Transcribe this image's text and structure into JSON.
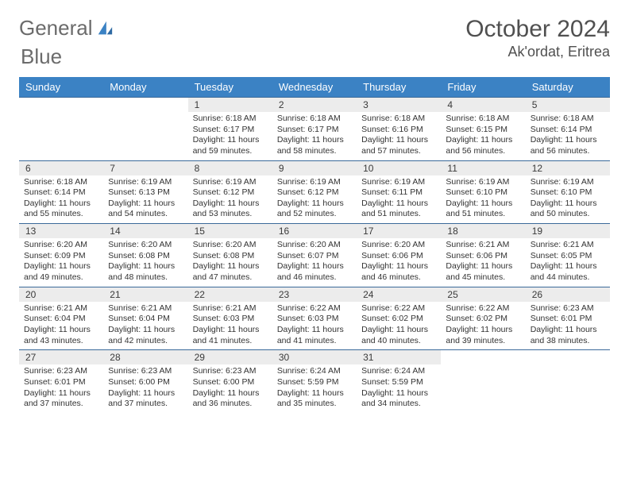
{
  "logo": {
    "text1": "General",
    "text2": "Blue"
  },
  "title": "October 2024",
  "location": "Ak'ordat, Eritrea",
  "weekdays": [
    "Sunday",
    "Monday",
    "Tuesday",
    "Wednesday",
    "Thursday",
    "Friday",
    "Saturday"
  ],
  "colors": {
    "header_bg": "#3b82c4",
    "header_fg": "#ffffff",
    "daynum_bg": "#ececec",
    "rule": "#3b6a9a",
    "text": "#333333"
  },
  "weeks": [
    [
      null,
      null,
      {
        "n": "1",
        "sr": "6:18 AM",
        "ss": "6:17 PM",
        "dl": "11 hours and 59 minutes."
      },
      {
        "n": "2",
        "sr": "6:18 AM",
        "ss": "6:17 PM",
        "dl": "11 hours and 58 minutes."
      },
      {
        "n": "3",
        "sr": "6:18 AM",
        "ss": "6:16 PM",
        "dl": "11 hours and 57 minutes."
      },
      {
        "n": "4",
        "sr": "6:18 AM",
        "ss": "6:15 PM",
        "dl": "11 hours and 56 minutes."
      },
      {
        "n": "5",
        "sr": "6:18 AM",
        "ss": "6:14 PM",
        "dl": "11 hours and 56 minutes."
      }
    ],
    [
      {
        "n": "6",
        "sr": "6:18 AM",
        "ss": "6:14 PM",
        "dl": "11 hours and 55 minutes."
      },
      {
        "n": "7",
        "sr": "6:19 AM",
        "ss": "6:13 PM",
        "dl": "11 hours and 54 minutes."
      },
      {
        "n": "8",
        "sr": "6:19 AM",
        "ss": "6:12 PM",
        "dl": "11 hours and 53 minutes."
      },
      {
        "n": "9",
        "sr": "6:19 AM",
        "ss": "6:12 PM",
        "dl": "11 hours and 52 minutes."
      },
      {
        "n": "10",
        "sr": "6:19 AM",
        "ss": "6:11 PM",
        "dl": "11 hours and 51 minutes."
      },
      {
        "n": "11",
        "sr": "6:19 AM",
        "ss": "6:10 PM",
        "dl": "11 hours and 51 minutes."
      },
      {
        "n": "12",
        "sr": "6:19 AM",
        "ss": "6:10 PM",
        "dl": "11 hours and 50 minutes."
      }
    ],
    [
      {
        "n": "13",
        "sr": "6:20 AM",
        "ss": "6:09 PM",
        "dl": "11 hours and 49 minutes."
      },
      {
        "n": "14",
        "sr": "6:20 AM",
        "ss": "6:08 PM",
        "dl": "11 hours and 48 minutes."
      },
      {
        "n": "15",
        "sr": "6:20 AM",
        "ss": "6:08 PM",
        "dl": "11 hours and 47 minutes."
      },
      {
        "n": "16",
        "sr": "6:20 AM",
        "ss": "6:07 PM",
        "dl": "11 hours and 46 minutes."
      },
      {
        "n": "17",
        "sr": "6:20 AM",
        "ss": "6:06 PM",
        "dl": "11 hours and 46 minutes."
      },
      {
        "n": "18",
        "sr": "6:21 AM",
        "ss": "6:06 PM",
        "dl": "11 hours and 45 minutes."
      },
      {
        "n": "19",
        "sr": "6:21 AM",
        "ss": "6:05 PM",
        "dl": "11 hours and 44 minutes."
      }
    ],
    [
      {
        "n": "20",
        "sr": "6:21 AM",
        "ss": "6:04 PM",
        "dl": "11 hours and 43 minutes."
      },
      {
        "n": "21",
        "sr": "6:21 AM",
        "ss": "6:04 PM",
        "dl": "11 hours and 42 minutes."
      },
      {
        "n": "22",
        "sr": "6:21 AM",
        "ss": "6:03 PM",
        "dl": "11 hours and 41 minutes."
      },
      {
        "n": "23",
        "sr": "6:22 AM",
        "ss": "6:03 PM",
        "dl": "11 hours and 41 minutes."
      },
      {
        "n": "24",
        "sr": "6:22 AM",
        "ss": "6:02 PM",
        "dl": "11 hours and 40 minutes."
      },
      {
        "n": "25",
        "sr": "6:22 AM",
        "ss": "6:02 PM",
        "dl": "11 hours and 39 minutes."
      },
      {
        "n": "26",
        "sr": "6:23 AM",
        "ss": "6:01 PM",
        "dl": "11 hours and 38 minutes."
      }
    ],
    [
      {
        "n": "27",
        "sr": "6:23 AM",
        "ss": "6:01 PM",
        "dl": "11 hours and 37 minutes."
      },
      {
        "n": "28",
        "sr": "6:23 AM",
        "ss": "6:00 PM",
        "dl": "11 hours and 37 minutes."
      },
      {
        "n": "29",
        "sr": "6:23 AM",
        "ss": "6:00 PM",
        "dl": "11 hours and 36 minutes."
      },
      {
        "n": "30",
        "sr": "6:24 AM",
        "ss": "5:59 PM",
        "dl": "11 hours and 35 minutes."
      },
      {
        "n": "31",
        "sr": "6:24 AM",
        "ss": "5:59 PM",
        "dl": "11 hours and 34 minutes."
      },
      null,
      null
    ]
  ],
  "labels": {
    "sunrise": "Sunrise:",
    "sunset": "Sunset:",
    "daylight": "Daylight:"
  }
}
